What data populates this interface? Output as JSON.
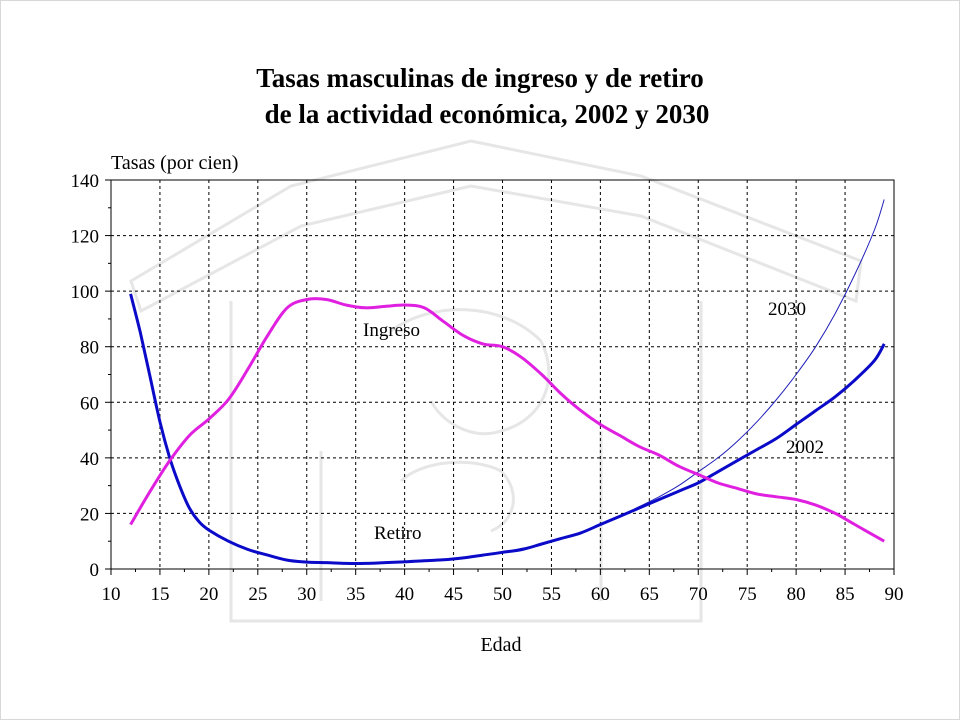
{
  "chart_data": {
    "type": "line",
    "title_lines": [
      "Tasas masculinas de ingreso y de retiro",
      "de la actividad económica, 2002 y 2030"
    ],
    "ylabel": "Tasas (por cien)",
    "xlabel": "Edad",
    "xlim": [
      10,
      90
    ],
    "ylim": [
      0,
      140
    ],
    "xticks": [
      "10",
      "15",
      "20",
      "25",
      "30",
      "35",
      "40",
      "45",
      "50",
      "55",
      "60",
      "65",
      "70",
      "75",
      "80",
      "85",
      "90"
    ],
    "yticks": [
      "0",
      "20",
      "40",
      "60",
      "80",
      "100",
      "120",
      "140"
    ],
    "grid": true,
    "colors": {
      "ingreso": "#e020e0",
      "retiro_2002": "#0a0ac8",
      "retiro_2030": "#2020b8"
    },
    "annotations": {
      "ingreso": "Ingreso",
      "retiro": "Retiro",
      "y2030": "2030",
      "y2002": "2002"
    },
    "series": [
      {
        "id": "ingreso",
        "x": [
          12,
          14,
          16,
          18,
          20,
          22,
          24,
          26,
          28,
          30,
          32,
          34,
          36,
          38,
          40,
          42,
          44,
          46,
          48,
          50,
          52,
          54,
          56,
          58,
          60,
          62,
          64,
          66,
          68,
          70,
          72,
          74,
          76,
          78,
          80,
          82,
          84,
          86,
          89
        ],
        "y": [
          16,
          28,
          39,
          48,
          54,
          61,
          72,
          84,
          94,
          97,
          97,
          95,
          94,
          94.5,
          95,
          94,
          89,
          84,
          81,
          80,
          76,
          70,
          63,
          57,
          52,
          48,
          44,
          41,
          37,
          34,
          31,
          29,
          27,
          26,
          25,
          23,
          20,
          16,
          10
        ]
      },
      {
        "id": "retiro_2002",
        "x": [
          12,
          13,
          14,
          15,
          16,
          17,
          18,
          19,
          20,
          22,
          24,
          26,
          28,
          30,
          32,
          34,
          36,
          38,
          40,
          42,
          44,
          46,
          48,
          50,
          52,
          54,
          56,
          58,
          60,
          62,
          64,
          66,
          68,
          70,
          72,
          74,
          76,
          78,
          80,
          82,
          84,
          86,
          88,
          89
        ],
        "y": [
          99,
          85,
          69,
          53,
          40,
          30,
          22,
          17,
          14,
          10,
          7,
          5,
          3.2,
          2.5,
          2.3,
          2,
          2,
          2.3,
          2.6,
          3,
          3.3,
          4,
          5,
          6,
          7,
          9,
          11,
          13,
          16,
          19,
          22,
          25,
          28,
          31,
          35,
          39,
          43,
          47,
          52,
          57,
          62,
          68,
          75,
          81
        ]
      },
      {
        "id": "retiro_2030",
        "x": [
          50,
          54,
          58,
          60,
          62,
          64,
          66,
          68,
          70,
          72,
          74,
          76,
          78,
          80,
          82,
          84,
          86,
          88,
          89
        ],
        "y": [
          6,
          9,
          13,
          16,
          19,
          22.5,
          26,
          30,
          35,
          40,
          46,
          53,
          61,
          70,
          80,
          92,
          106,
          122,
          133
        ]
      }
    ]
  }
}
